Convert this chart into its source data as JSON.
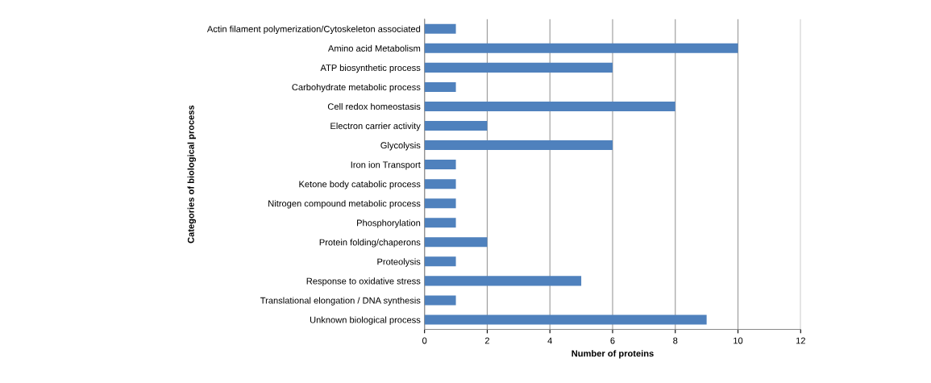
{
  "chart_data": {
    "type": "bar",
    "orientation": "horizontal",
    "xlabel": "Number of proteins",
    "ylabel": "Categories of biological process",
    "categories": [
      "Actin filament polymerization/Cytoskeleton associated",
      "Amino acid Metabolism",
      "ATP biosynthetic process",
      "Carbohydrate metabolic process",
      "Cell redox homeostasis",
      "Electron carrier activity",
      "Glycolysis",
      "Iron ion Transport",
      "Ketone body catabolic process",
      "Nitrogen compound metabolic process",
      "Phosphorylation",
      "Protein folding/chaperons",
      "Proteolysis",
      "Response to oxidative stress",
      "Translational elongation / DNA synthesis",
      "Unknown biological process"
    ],
    "values": [
      1,
      10,
      6,
      1,
      8,
      2,
      6,
      1,
      1,
      1,
      1,
      2,
      1,
      5,
      1,
      9
    ],
    "color": "#4f81bd",
    "xlim": [
      0,
      12
    ],
    "xticks": [
      0,
      2,
      4,
      6,
      8,
      10,
      12
    ],
    "grid": "x",
    "legend": false
  }
}
